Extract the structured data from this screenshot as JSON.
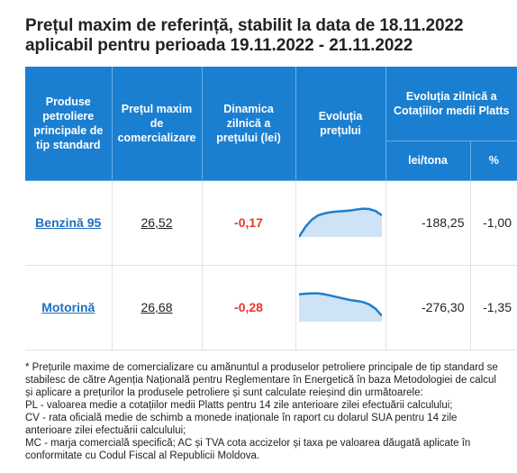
{
  "title_line1": "Prețul maxim de referință, stabilit la data de 18.11.2022",
  "title_line2": "aplicabil pentru perioada 19.11.2022 - 21.11.2022",
  "headers": {
    "product": "Produse petroliere principale de tip standard",
    "max_price": "Prețul maxim de comercializare",
    "dynamics": "Dinamica zilnică a prețului (lei)",
    "evolution": "Evoluția prețului",
    "platts": "Evoluția zilnică a Cotațiilor medii Platts",
    "lei_tona": "lei/tona",
    "percent": "%"
  },
  "rows": [
    {
      "product": "Benzină 95",
      "price": "26,52",
      "dynamic": "-0,17",
      "lei_tona": "-188,25",
      "percent": "-1,00",
      "sparkline": [
        0.0,
        0.35,
        0.6,
        0.75,
        0.82,
        0.86,
        0.88,
        0.9,
        0.92,
        0.95,
        0.98,
        0.97,
        0.9,
        0.75
      ]
    },
    {
      "product": "Motorină",
      "price": "26,68",
      "dynamic": "-0,28",
      "lei_tona": "-276,30",
      "percent": "-1,35",
      "sparkline": [
        0.95,
        0.97,
        0.98,
        0.98,
        0.95,
        0.9,
        0.85,
        0.8,
        0.75,
        0.72,
        0.68,
        0.6,
        0.45,
        0.2
      ]
    }
  ],
  "notes": [
    "* Prețurile maxime de comercializare cu amănuntul a produselor petroliere principale de tip standard se stabilesc de către Agenția Națională pentru Reglementare în Energetică în baza Metodologiei de calcul și aplicare a prețurilor la produsele petroliere și sunt calculate reieșind din următoarele:",
    "PL - valoarea medie a cotațiilor medii Platts pentru 14 zile anterioare zilei efectuării calculului;",
    "CV - rata oficială medie de schimb a monede inaționale în raport cu dolarul SUA pentru 14 zile anterioare zilei efectuării calculului;",
    "MC - marja comercială specifică; AC și TVA cota accizelor și taxa pe valoarea dăugată aplicate în conformitate cu Codul Fiscal al Republicii Moldova."
  ],
  "colors": {
    "header_bg": "#1b7fd1",
    "link": "#1f6fbf",
    "negative": "#e53a2b",
    "spark_line": "#1b7fd1",
    "spark_fill": "#cfe3f6"
  }
}
